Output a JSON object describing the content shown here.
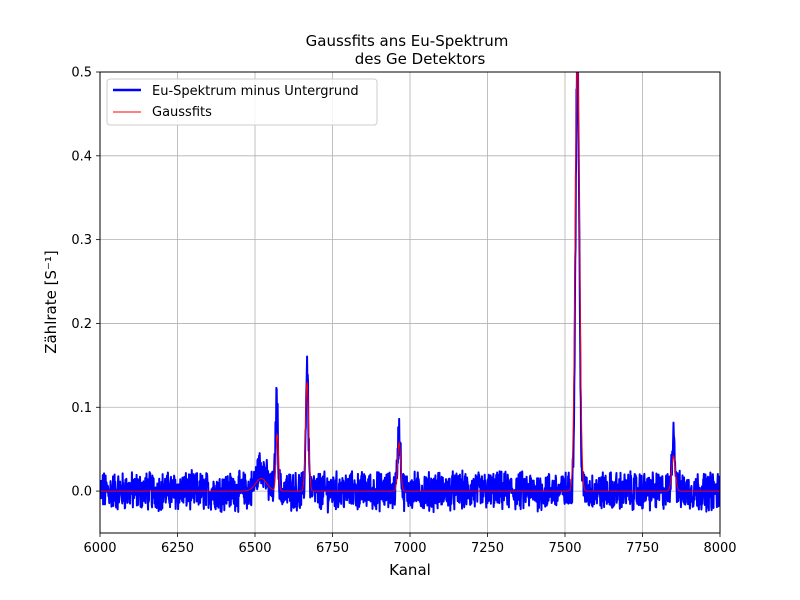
{
  "chart_data": {
    "type": "line",
    "title": [
      "Gaussfits ans Eu-Spektrum",
      "des Ge Detektors"
    ],
    "xlabel": "Kanal",
    "ylabel": "Zählrate [S⁻¹]",
    "xlim": [
      6000,
      8000
    ],
    "ylim": [
      -0.05,
      0.5
    ],
    "xticks": [
      6000,
      6250,
      6500,
      6750,
      7000,
      7250,
      7500,
      7750,
      8000
    ],
    "yticks": [
      0.0,
      0.1,
      0.2,
      0.3,
      0.4,
      0.5
    ],
    "xtick_labels": [
      "6000",
      "6250",
      "6500",
      "6750",
      "7000",
      "7250",
      "7500",
      "7750",
      "8000"
    ],
    "ytick_labels": [
      "0.0",
      "0.1",
      "0.2",
      "0.3",
      "0.4",
      "0.5"
    ],
    "grid": true,
    "legend_position": "top-left",
    "series": [
      {
        "name": "Eu-Spektrum minus Untergrund",
        "color": "#0000ff",
        "style": "noisy-spectrum",
        "noise_amplitude": 0.02,
        "x_range": [
          6000,
          8000
        ],
        "peaks": [
          {
            "center": 6520,
            "height": 0.03,
            "sigma": 14
          },
          {
            "center": 6570,
            "height": 0.11,
            "sigma": 4
          },
          {
            "center": 6668,
            "height": 0.15,
            "sigma": 4
          },
          {
            "center": 6965,
            "height": 0.07,
            "sigma": 5
          },
          {
            "center": 7540,
            "height": 0.52,
            "sigma": 6
          },
          {
            "center": 7850,
            "height": 0.07,
            "sigma": 5
          }
        ]
      },
      {
        "name": "Gaussfits",
        "color": "#ff0000",
        "style": "gaussian-sum",
        "x_range": [
          6000,
          8000
        ],
        "peaks": [
          {
            "center": 6520,
            "height": 0.015,
            "sigma": 18
          },
          {
            "center": 6572,
            "height": 0.068,
            "sigma": 4
          },
          {
            "center": 6668,
            "height": 0.13,
            "sigma": 5
          },
          {
            "center": 6965,
            "height": 0.058,
            "sigma": 5
          },
          {
            "center": 7540,
            "height": 0.52,
            "sigma": 7
          },
          {
            "center": 7850,
            "height": 0.042,
            "sigma": 6
          }
        ]
      }
    ]
  }
}
